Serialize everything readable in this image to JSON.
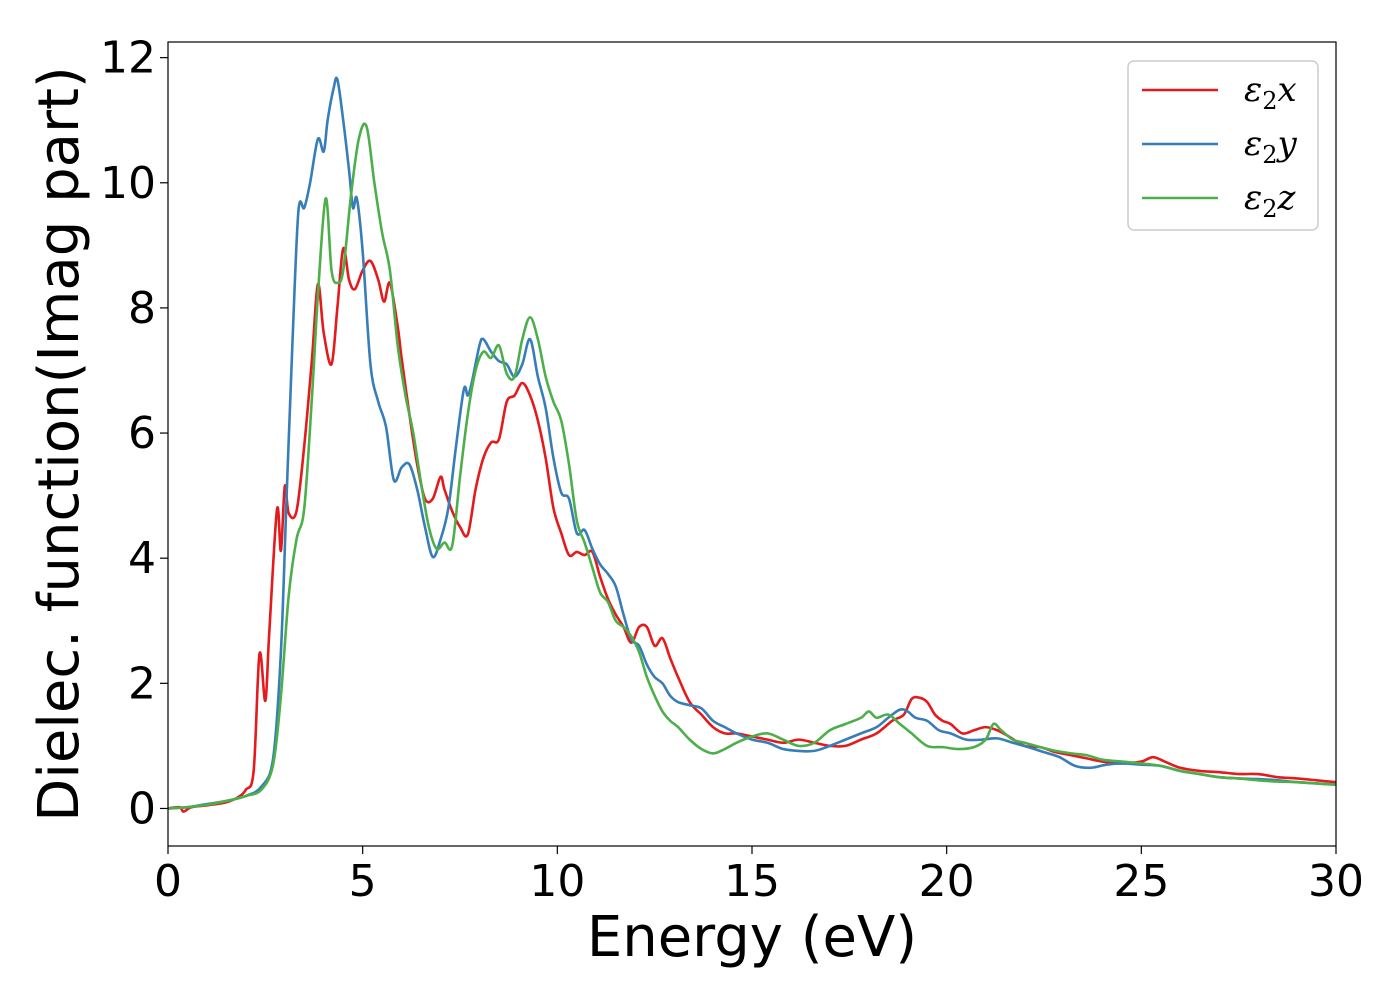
{
  "chart_data": {
    "type": "line",
    "xlabel": "Energy (eV)",
    "ylabel": "Dielec. function(Imag part)",
    "xlim": [
      0,
      30
    ],
    "ylim": [
      -0.6,
      12.25
    ],
    "xticks": [
      0,
      5,
      10,
      15,
      20,
      25,
      30
    ],
    "yticks": [
      0,
      2,
      4,
      6,
      8,
      10,
      12
    ],
    "grid": false,
    "legend_position": "top-right",
    "series": [
      {
        "name": "ε2x",
        "legend": {
          "base": "ε",
          "sub": "2",
          "axis": "x"
        },
        "color": "#e41a1c",
        "x": [
          0,
          0.3,
          0.4,
          0.6,
          1,
          1.5,
          1.8,
          2,
          2.2,
          2.35,
          2.5,
          2.6,
          2.8,
          2.9,
          3,
          3.1,
          3.3,
          3.5,
          3.7,
          3.85,
          4,
          4.2,
          4.35,
          4.5,
          4.65,
          4.8,
          5,
          5.2,
          5.4,
          5.55,
          5.7,
          5.9,
          6,
          6.2,
          6.4,
          6.6,
          6.8,
          7,
          7.1,
          7.3,
          7.5,
          7.7,
          7.9,
          8.1,
          8.3,
          8.5,
          8.7,
          8.9,
          9.1,
          9.3,
          9.5,
          9.7,
          9.9,
          10.1,
          10.3,
          10.5,
          10.7,
          10.9,
          11.1,
          11.3,
          11.5,
          11.7,
          11.9,
          12.1,
          12.3,
          12.5,
          12.7,
          12.9,
          13.1,
          13.4,
          13.7,
          14,
          14.3,
          14.6,
          15,
          15.4,
          15.8,
          16.2,
          16.6,
          17,
          17.4,
          17.8,
          18.2,
          18.6,
          18.9,
          19.1,
          19.3,
          19.5,
          19.7,
          19.9,
          20.1,
          20.4,
          20.7,
          21,
          21.3,
          21.6,
          22,
          22.4,
          22.8,
          23.2,
          23.6,
          24,
          24.5,
          25,
          25.3,
          25.6,
          26,
          26.5,
          27,
          27.5,
          28,
          28.5,
          29,
          29.5,
          30
        ],
        "y": [
          0,
          0.02,
          -0.05,
          0.02,
          0.05,
          0.1,
          0.18,
          0.3,
          0.6,
          2.47,
          1.72,
          2.8,
          4.78,
          4.12,
          5.15,
          4.72,
          4.75,
          5.8,
          7.2,
          8.38,
          7.6,
          7.1,
          8,
          8.95,
          8.45,
          8.3,
          8.6,
          8.75,
          8.45,
          8.1,
          8.4,
          7.7,
          7.2,
          6.3,
          5.5,
          4.95,
          4.95,
          5.3,
          5.1,
          4.75,
          4.5,
          4.38,
          5.1,
          5.6,
          5.85,
          5.9,
          6.5,
          6.6,
          6.8,
          6.6,
          6.2,
          5.6,
          4.8,
          4.4,
          4.05,
          4.1,
          4.05,
          4.1,
          3.7,
          3.35,
          3.1,
          2.9,
          2.65,
          2.9,
          2.9,
          2.6,
          2.72,
          2.4,
          2.1,
          1.7,
          1.5,
          1.3,
          1.2,
          1.2,
          1.15,
          1.1,
          1.05,
          1.1,
          1.05,
          1.0,
          1.0,
          1.1,
          1.2,
          1.4,
          1.5,
          1.75,
          1.77,
          1.7,
          1.5,
          1.4,
          1.35,
          1.2,
          1.25,
          1.3,
          1.25,
          1.15,
          1.0,
          0.98,
          0.9,
          0.85,
          0.8,
          0.75,
          0.72,
          0.75,
          0.82,
          0.75,
          0.65,
          0.6,
          0.58,
          0.55,
          0.55,
          0.5,
          0.48,
          0.45,
          0.42
        ]
      },
      {
        "name": "ε2y",
        "legend": {
          "base": "ε",
          "sub": "2",
          "axis": "y"
        },
        "color": "#377eb8",
        "x": [
          0,
          0.5,
          1,
          1.5,
          2,
          2.4,
          2.7,
          2.9,
          3.05,
          3.2,
          3.35,
          3.5,
          3.65,
          3.85,
          4,
          4.1,
          4.25,
          4.35,
          4.5,
          4.65,
          4.75,
          4.85,
          5,
          5.2,
          5.4,
          5.6,
          5.8,
          6,
          6.2,
          6.4,
          6.6,
          6.8,
          7,
          7.2,
          7.4,
          7.6,
          7.7,
          7.8,
          8,
          8.1,
          8.3,
          8.5,
          8.7,
          8.9,
          9.1,
          9.3,
          9.5,
          9.7,
          9.9,
          10.1,
          10.3,
          10.5,
          10.7,
          10.9,
          11.1,
          11.3,
          11.5,
          11.7,
          11.9,
          12.1,
          12.3,
          12.5,
          12.7,
          12.9,
          13.1,
          13.4,
          13.7,
          14,
          14.3,
          14.6,
          15,
          15.4,
          15.8,
          16.2,
          16.6,
          17,
          17.4,
          17.8,
          18.2,
          18.5,
          18.8,
          19,
          19.2,
          19.5,
          19.8,
          20.1,
          20.5,
          20.9,
          21.3,
          21.7,
          22.1,
          22.5,
          22.9,
          23.3,
          23.7,
          24.1,
          24.5,
          25,
          25.5,
          26,
          26.5,
          27,
          27.5,
          28,
          28.5,
          29,
          29.5,
          30
        ],
        "y": [
          0,
          0.02,
          0.07,
          0.12,
          0.2,
          0.35,
          0.8,
          2.5,
          5.05,
          7.5,
          9.55,
          9.6,
          10.0,
          10.7,
          10.5,
          11.0,
          11.5,
          11.65,
          11.0,
          10.2,
          9.6,
          9.75,
          8.9,
          7.1,
          6.5,
          6.1,
          5.25,
          5.45,
          5.5,
          5.1,
          4.5,
          4.02,
          4.3,
          4.8,
          5.8,
          6.7,
          6.6,
          6.8,
          7.4,
          7.5,
          7.3,
          7.15,
          7.1,
          6.9,
          7.1,
          7.5,
          6.9,
          6.4,
          5.6,
          5.05,
          4.95,
          4.4,
          4.45,
          4.15,
          3.9,
          3.75,
          3.55,
          3.1,
          2.7,
          2.6,
          2.3,
          2.1,
          2.0,
          1.8,
          1.7,
          1.65,
          1.6,
          1.4,
          1.3,
          1.2,
          1.1,
          1.05,
          0.95,
          0.92,
          0.92,
          1.0,
          1.1,
          1.2,
          1.3,
          1.45,
          1.58,
          1.55,
          1.45,
          1.4,
          1.25,
          1.2,
          1.1,
          1.1,
          1.12,
          1.05,
          0.98,
          0.9,
          0.82,
          0.68,
          0.65,
          0.7,
          0.72,
          0.7,
          0.68,
          0.6,
          0.55,
          0.5,
          0.48,
          0.47,
          0.45,
          0.42,
          0.4,
          0.38
        ]
      },
      {
        "name": "ε2z",
        "legend": {
          "base": "ε",
          "sub": "2",
          "axis": "z"
        },
        "color": "#4daf4a",
        "x": [
          0,
          0.5,
          1,
          1.5,
          2,
          2.4,
          2.7,
          2.9,
          3.1,
          3.3,
          3.5,
          3.7,
          3.85,
          4.05,
          4.2,
          4.35,
          4.5,
          4.7,
          4.9,
          5.1,
          5.3,
          5.5,
          5.7,
          5.9,
          6.1,
          6.3,
          6.5,
          6.7,
          6.9,
          7.1,
          7.3,
          7.5,
          7.7,
          7.9,
          8.1,
          8.3,
          8.5,
          8.7,
          8.9,
          9.1,
          9.3,
          9.5,
          9.7,
          9.9,
          10.1,
          10.3,
          10.5,
          10.7,
          10.9,
          11.1,
          11.3,
          11.5,
          11.7,
          11.9,
          12.1,
          12.3,
          12.5,
          12.7,
          12.9,
          13.1,
          13.4,
          13.7,
          14,
          14.3,
          14.6,
          15,
          15.4,
          15.8,
          16.2,
          16.6,
          17,
          17.4,
          17.8,
          18,
          18.2,
          18.5,
          18.8,
          19.1,
          19.5,
          19.9,
          20.3,
          20.7,
          21,
          21.2,
          21.4,
          21.7,
          22,
          22.4,
          22.8,
          23.2,
          23.6,
          24,
          24.5,
          25,
          25.5,
          26,
          26.5,
          27,
          27.5,
          28,
          28.5,
          29,
          29.5,
          30
        ],
        "y": [
          0,
          0.02,
          0.06,
          0.12,
          0.2,
          0.3,
          0.7,
          1.8,
          3.4,
          4.3,
          4.8,
          6.6,
          8.2,
          9.75,
          8.6,
          8.4,
          8.6,
          9.8,
          10.7,
          10.9,
          10.0,
          9.2,
          8.6,
          7.4,
          6.6,
          6.0,
          5.2,
          4.5,
          4.15,
          4.25,
          4.2,
          5.3,
          6.3,
          7.0,
          7.3,
          7.2,
          7.4,
          6.95,
          6.9,
          7.5,
          7.85,
          7.5,
          6.9,
          6.5,
          6.2,
          5.5,
          4.6,
          4.25,
          3.85,
          3.45,
          3.3,
          3.0,
          2.9,
          2.75,
          2.5,
          2.1,
          1.8,
          1.55,
          1.4,
          1.3,
          1.1,
          0.95,
          0.88,
          0.95,
          1.05,
          1.15,
          1.2,
          1.1,
          1.0,
          1.05,
          1.25,
          1.35,
          1.45,
          1.55,
          1.45,
          1.5,
          1.35,
          1.2,
          1.0,
          0.98,
          0.95,
          0.98,
          1.1,
          1.35,
          1.25,
          1.1,
          1.05,
          0.98,
          0.92,
          0.88,
          0.85,
          0.78,
          0.75,
          0.72,
          0.68,
          0.6,
          0.55,
          0.5,
          0.48,
          0.45,
          0.43,
          0.42,
          0.4,
          0.38
        ]
      }
    ]
  }
}
